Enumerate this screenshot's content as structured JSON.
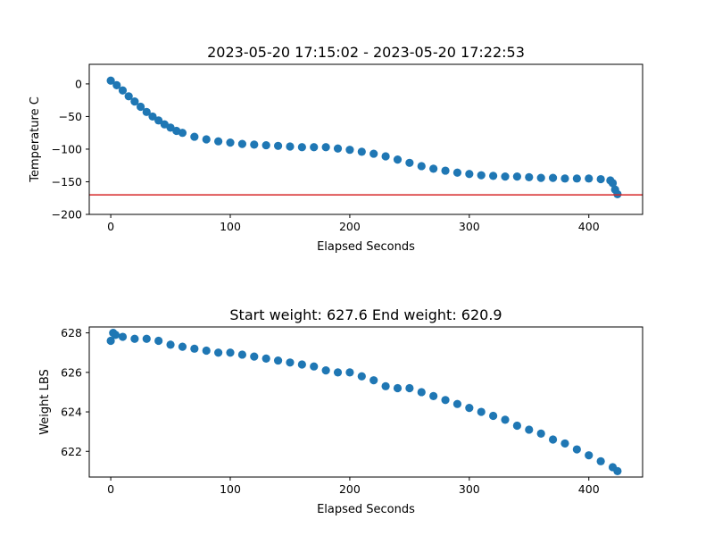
{
  "chart_data": [
    {
      "type": "scatter",
      "title": "2023-05-20 17:15:02 - 2023-05-20 17:22:53",
      "xlabel": "Elapsed Seconds",
      "ylabel": "Temperature C",
      "xlim": [
        -18,
        445
      ],
      "ylim": [
        -200,
        30
      ],
      "xticks": [
        0,
        100,
        200,
        300,
        400
      ],
      "yticks": [
        0,
        -50,
        -100,
        -150,
        -200
      ],
      "xtick_labels": [
        "0",
        "100",
        "200",
        "300",
        "400"
      ],
      "ytick_labels": [
        "0",
        "−50",
        "−100",
        "−150",
        "−200"
      ],
      "marker_color": "#1f77b4",
      "reference_line": {
        "y": -170,
        "color": "#d62728"
      },
      "series": [
        {
          "x": [
            0,
            5,
            10,
            15,
            20,
            25,
            30,
            35,
            40,
            45,
            50,
            55,
            60,
            70,
            80,
            90,
            100,
            110,
            120,
            130,
            140,
            150,
            160,
            170,
            180,
            190,
            200,
            210,
            220,
            230,
            240,
            250,
            260,
            270,
            280,
            290,
            300,
            310,
            320,
            330,
            340,
            350,
            360,
            370,
            380,
            390,
            400,
            410,
            418,
            420,
            422,
            424
          ],
          "y": [
            5,
            -2,
            -10,
            -19,
            -27,
            -35,
            -43,
            -50,
            -56,
            -62,
            -67,
            -72,
            -75,
            -81,
            -85,
            -88,
            -90,
            -92,
            -93,
            -94,
            -95,
            -96,
            -97,
            -97,
            -97,
            -99,
            -101,
            -104,
            -107,
            -111,
            -116,
            -121,
            -126,
            -130,
            -133,
            -136,
            -138,
            -140,
            -141,
            -142,
            -142,
            -143,
            -144,
            -144,
            -145,
            -145,
            -145,
            -146,
            -148,
            -152,
            -162,
            -169
          ]
        }
      ]
    },
    {
      "type": "scatter",
      "title": "Start weight: 627.6 End weight: 620.9",
      "xlabel": "Elapsed Seconds",
      "ylabel": "Weight LBS",
      "xlim": [
        -18,
        445
      ],
      "ylim": [
        620.7,
        628.3
      ],
      "xticks": [
        0,
        100,
        200,
        300,
        400
      ],
      "yticks": [
        622,
        624,
        626,
        628
      ],
      "xtick_labels": [
        "0",
        "100",
        "200",
        "300",
        "400"
      ],
      "ytick_labels": [
        "622",
        "624",
        "626",
        "628"
      ],
      "marker_color": "#1f77b4",
      "series": [
        {
          "x": [
            0,
            2,
            4,
            10,
            20,
            30,
            40,
            50,
            60,
            70,
            80,
            90,
            100,
            110,
            120,
            130,
            140,
            150,
            160,
            170,
            180,
            190,
            200,
            210,
            220,
            230,
            240,
            250,
            260,
            270,
            280,
            290,
            300,
            310,
            320,
            330,
            340,
            350,
            360,
            370,
            380,
            390,
            400,
            410,
            420,
            424
          ],
          "y": [
            627.6,
            628.0,
            627.9,
            627.8,
            627.7,
            627.7,
            627.6,
            627.4,
            627.3,
            627.2,
            627.1,
            627.0,
            627.0,
            626.9,
            626.8,
            626.7,
            626.6,
            626.5,
            626.4,
            626.3,
            626.1,
            626.0,
            626.0,
            625.8,
            625.6,
            625.3,
            625.2,
            625.2,
            625.0,
            624.8,
            624.6,
            624.4,
            624.2,
            624.0,
            623.8,
            623.6,
            623.3,
            623.1,
            622.9,
            622.6,
            622.4,
            622.1,
            621.8,
            621.5,
            621.2,
            621.0
          ]
        }
      ]
    }
  ]
}
